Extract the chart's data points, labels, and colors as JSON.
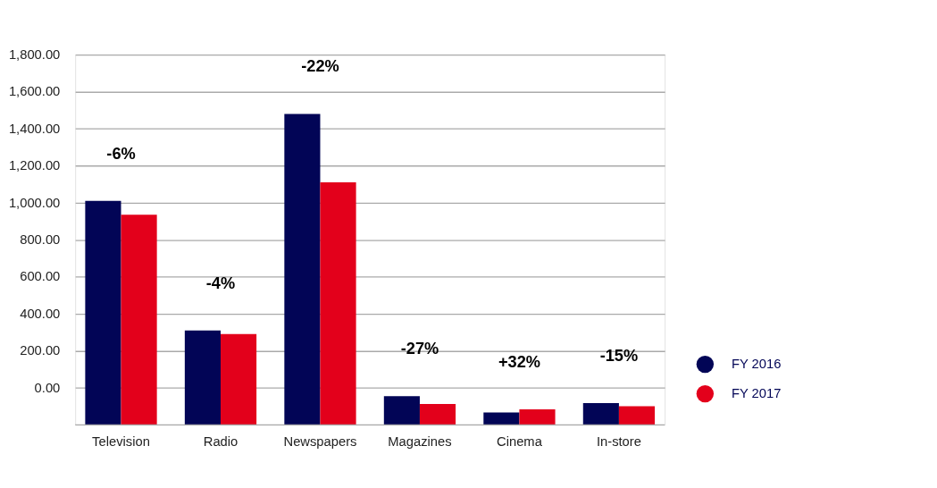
{
  "chart_data": {
    "type": "bar",
    "categories": [
      "Television",
      "Radio",
      "Newspapers",
      "Magazines",
      "Cinema",
      "In-store"
    ],
    "series": [
      {
        "name": "FY 2016",
        "color": "#020556",
        "base": [
          -200,
          -200,
          -200,
          -200,
          -200,
          -200
        ],
        "values": [
          1210,
          510,
          1680,
          155,
          67,
          117
        ]
      },
      {
        "name": "FY 2017",
        "color": "#e3001b",
        "base": [
          -200,
          -200,
          -200,
          -200,
          -200,
          -200
        ],
        "values": [
          1135,
          490,
          1310,
          113,
          84,
          101
        ]
      }
    ],
    "ylim": [
      -200,
      1800
    ],
    "yticks": [
      {
        "value": 0,
        "label": "0.00"
      },
      {
        "value": 200,
        "label": "200.00"
      },
      {
        "value": 400,
        "label": "400.00"
      },
      {
        "value": 600,
        "label": "600.00"
      },
      {
        "value": 800,
        "label": "800.00"
      },
      {
        "value": 1000,
        "label": "1,000.00"
      },
      {
        "value": 1200,
        "label": "1,200.00"
      },
      {
        "value": 1400,
        "label": "1,400.00"
      },
      {
        "value": 1600,
        "label": "1,600.00"
      },
      {
        "value": 1800,
        "label": "1,800.00"
      }
    ],
    "grid": "y",
    "legend": "right",
    "annotations": [
      "-6%",
      "-4%",
      "-22%",
      "-27%",
      "+32%",
      "-15%"
    ]
  }
}
